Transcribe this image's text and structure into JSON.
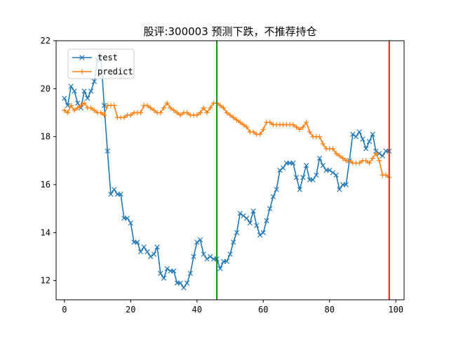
{
  "chart_data": {
    "type": "line",
    "title": "股评:300003 预测下跌，不推荐持仓",
    "xlabel": "",
    "ylabel": "",
    "xlim": [
      -2.5,
      102.5
    ],
    "ylim": [
      11.2,
      22.0
    ],
    "xticks": [
      0,
      20,
      40,
      60,
      80,
      100
    ],
    "yticks": [
      12,
      14,
      16,
      18,
      20,
      22
    ],
    "grid": false,
    "legend_position": "upper-left",
    "vlines": [
      {
        "x": 46,
        "color": "#008000"
      },
      {
        "x": 98,
        "color": "#ff0000"
      }
    ],
    "series": [
      {
        "name": "test",
        "color": "#1f77b4",
        "marker": "x",
        "x": [
          0,
          1,
          2,
          3,
          4,
          5,
          6,
          7,
          8,
          9,
          10,
          11,
          12,
          13,
          14,
          15,
          16,
          17,
          18,
          19,
          20,
          21,
          22,
          23,
          24,
          25,
          26,
          27,
          28,
          29,
          30,
          31,
          32,
          33,
          34,
          35,
          36,
          37,
          38,
          39,
          40,
          41,
          42,
          43,
          44,
          45,
          46,
          47,
          48,
          49,
          50,
          51,
          52,
          53,
          54,
          55,
          56,
          57,
          58,
          59,
          60,
          61,
          62,
          63,
          64,
          65,
          66,
          67,
          68,
          69,
          70,
          71,
          72,
          73,
          74,
          75,
          76,
          77,
          78,
          79,
          80,
          81,
          82,
          83,
          84,
          85,
          86,
          87,
          88,
          89,
          90,
          91,
          92,
          93,
          94,
          95,
          96,
          97,
          98
        ],
        "y": [
          19.6,
          19.3,
          20.1,
          19.9,
          19.4,
          19.2,
          19.9,
          19.6,
          19.9,
          20.3,
          21.2,
          21.4,
          19.3,
          17.4,
          15.6,
          15.8,
          15.6,
          15.6,
          14.6,
          14.6,
          14.4,
          13.6,
          13.6,
          13.2,
          13.4,
          13.2,
          13.0,
          13.1,
          13.4,
          12.3,
          12.1,
          12.5,
          12.4,
          12.4,
          11.9,
          11.9,
          11.7,
          11.9,
          12.3,
          13.0,
          13.6,
          13.7,
          13.1,
          12.9,
          13.0,
          12.9,
          12.9,
          12.5,
          12.8,
          12.8,
          13.1,
          13.6,
          14.0,
          14.8,
          14.7,
          14.6,
          14.4,
          14.9,
          14.3,
          13.9,
          14.0,
          14.5,
          15.0,
          15.5,
          15.8,
          16.6,
          16.7,
          16.9,
          16.9,
          16.9,
          16.3,
          15.8,
          16.3,
          16.8,
          16.2,
          16.2,
          16.4,
          17.1,
          16.8,
          16.6,
          16.6,
          16.5,
          16.4,
          15.8,
          16.0,
          16.0,
          17.0,
          18.1,
          18.0,
          18.2,
          17.9,
          17.5,
          17.8,
          18.1,
          17.4,
          17.3,
          17.2,
          17.4,
          17.4
        ]
      },
      {
        "name": "predict",
        "color": "#ff7f0e",
        "marker": "+",
        "x": [
          0,
          1,
          2,
          3,
          4,
          5,
          6,
          7,
          8,
          9,
          10,
          11,
          12,
          13,
          14,
          15,
          16,
          17,
          18,
          19,
          20,
          21,
          22,
          23,
          24,
          25,
          26,
          27,
          28,
          29,
          30,
          31,
          32,
          33,
          34,
          35,
          36,
          37,
          38,
          39,
          40,
          41,
          42,
          43,
          44,
          45,
          46,
          47,
          48,
          49,
          50,
          51,
          52,
          53,
          54,
          55,
          56,
          57,
          58,
          59,
          60,
          61,
          62,
          63,
          64,
          65,
          66,
          67,
          68,
          69,
          70,
          71,
          72,
          73,
          74,
          75,
          76,
          77,
          78,
          79,
          80,
          81,
          82,
          83,
          84,
          85,
          86,
          87,
          88,
          89,
          90,
          91,
          92,
          93,
          94,
          95,
          96,
          97,
          98
        ],
        "y": [
          19.1,
          19.0,
          19.3,
          19.1,
          19.2,
          19.3,
          19.4,
          19.2,
          19.2,
          19.1,
          19.0,
          19.0,
          18.9,
          19.3,
          19.3,
          19.3,
          18.8,
          18.8,
          18.8,
          18.9,
          18.9,
          19.0,
          19.0,
          19.0,
          19.3,
          19.3,
          19.2,
          19.1,
          19.0,
          19.0,
          19.2,
          19.4,
          19.2,
          19.1,
          19.0,
          18.9,
          19.0,
          19.0,
          18.9,
          18.9,
          18.9,
          19.0,
          19.2,
          19.0,
          19.2,
          19.4,
          19.4,
          19.3,
          19.2,
          19.0,
          18.9,
          18.8,
          18.7,
          18.6,
          18.5,
          18.4,
          18.2,
          18.2,
          18.1,
          18.1,
          18.3,
          18.6,
          18.6,
          18.5,
          18.5,
          18.5,
          18.5,
          18.5,
          18.5,
          18.5,
          18.4,
          18.3,
          18.4,
          18.6,
          18.2,
          18.0,
          18.0,
          18.0,
          17.7,
          17.5,
          17.5,
          17.5,
          17.3,
          17.2,
          17.1,
          17.0,
          17.0,
          16.9,
          16.9,
          16.9,
          17.0,
          17.0,
          16.9,
          17.1,
          17.3,
          17.0,
          16.4,
          16.4,
          16.3
        ]
      }
    ]
  }
}
